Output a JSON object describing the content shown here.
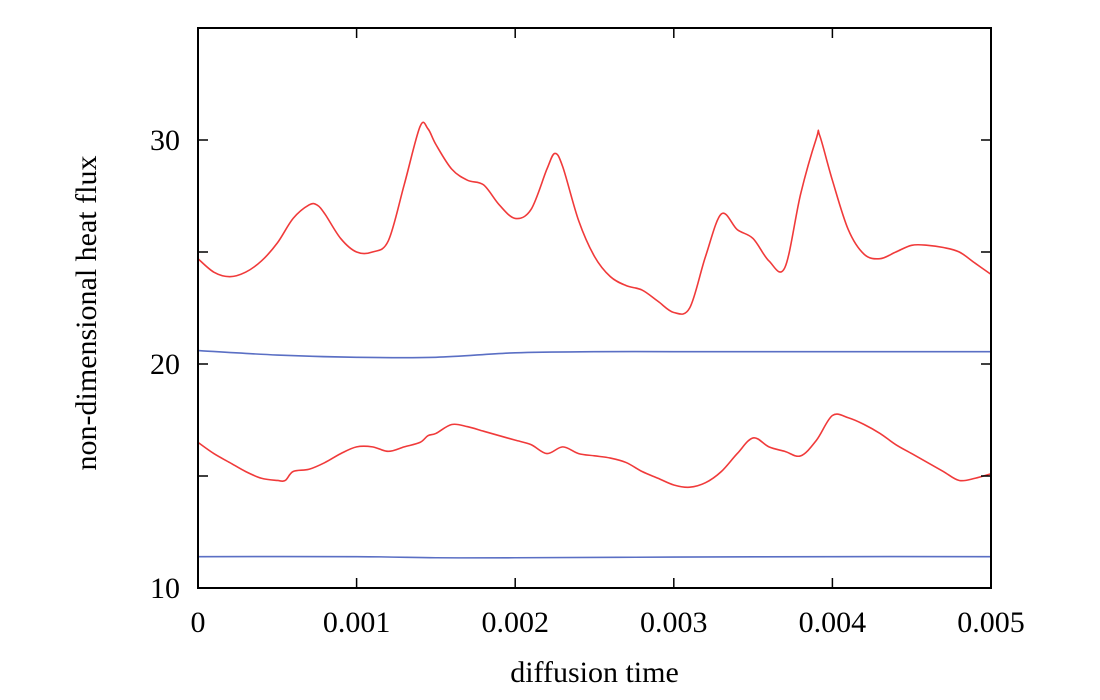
{
  "chart_data": {
    "type": "line",
    "title": "",
    "xlabel": "diffusion time",
    "ylabel": "non-dimensional heat flux",
    "xlim": [
      0,
      0.005
    ],
    "ylim": [
      10,
      35
    ],
    "grid": false,
    "legend": "none",
    "x_ticks": [
      0,
      0.001,
      0.002,
      0.003,
      0.004,
      0.005
    ],
    "x_tick_labels": [
      "0",
      "0.001",
      "0.002",
      "0.003",
      "0.004",
      "0.005"
    ],
    "y_ticks": [
      10,
      15,
      20,
      25,
      30,
      35
    ],
    "y_tick_labels": [
      "10",
      "",
      "20",
      "",
      "30",
      ""
    ],
    "series": [
      {
        "color": "#f03a3a",
        "x": [
          0,
          0.0001,
          0.0002,
          0.0003,
          0.0004,
          0.0005,
          0.0006,
          0.0007,
          0.00075,
          0.0008,
          0.0009,
          0.001,
          0.0011,
          0.0012,
          0.0013,
          0.0014,
          0.00145,
          0.0015,
          0.0016,
          0.0017,
          0.0018,
          0.0019,
          0.002,
          0.0021,
          0.0022,
          0.00225,
          0.0023,
          0.0024,
          0.0025,
          0.0026,
          0.0027,
          0.0028,
          0.0029,
          0.003,
          0.0031,
          0.0032,
          0.0033,
          0.0034,
          0.0035,
          0.0036,
          0.0037,
          0.0038,
          0.0039,
          0.00392,
          0.004,
          0.0041,
          0.0042,
          0.0043,
          0.0044,
          0.0045,
          0.0046,
          0.0047,
          0.0048,
          0.0049,
          0.005
        ],
        "y": [
          24.7,
          24.1,
          23.9,
          24.1,
          24.6,
          25.4,
          26.5,
          27.1,
          27.1,
          26.7,
          25.6,
          25.0,
          25.0,
          25.5,
          28.0,
          30.6,
          30.5,
          29.8,
          28.7,
          28.2,
          28.0,
          27.1,
          26.5,
          26.9,
          28.7,
          29.4,
          28.8,
          26.4,
          24.8,
          23.9,
          23.5,
          23.3,
          22.8,
          22.3,
          22.5,
          24.8,
          26.7,
          26.0,
          25.6,
          24.6,
          24.3,
          27.6,
          30.1,
          30.2,
          28.2,
          26.0,
          24.9,
          24.7,
          25.0,
          25.3,
          25.3,
          25.2,
          25.0,
          24.5,
          24.0
        ]
      },
      {
        "color": "#5a6fc4",
        "x": [
          0,
          0.0005,
          0.001,
          0.0015,
          0.002,
          0.0025,
          0.003,
          0.0035,
          0.004,
          0.0045,
          0.005
        ],
        "y": [
          20.6,
          20.4,
          20.3,
          20.3,
          20.5,
          20.55,
          20.55,
          20.55,
          20.55,
          20.55,
          20.55
        ]
      },
      {
        "color": "#f03a3a",
        "x": [
          0,
          0.0001,
          0.0002,
          0.0003,
          0.0004,
          0.0005,
          0.00055,
          0.0006,
          0.0007,
          0.0008,
          0.0009,
          0.001,
          0.0011,
          0.0012,
          0.0013,
          0.0014,
          0.00145,
          0.0015,
          0.0016,
          0.0017,
          0.0018,
          0.0019,
          0.002,
          0.0021,
          0.0022,
          0.0023,
          0.0024,
          0.0025,
          0.0026,
          0.0027,
          0.0028,
          0.0029,
          0.003,
          0.0031,
          0.0032,
          0.0033,
          0.0034,
          0.0035,
          0.0036,
          0.0037,
          0.0038,
          0.0039,
          0.004,
          0.0041,
          0.0042,
          0.0043,
          0.0044,
          0.0045,
          0.0046,
          0.0047,
          0.0048,
          0.0049,
          0.005
        ],
        "y": [
          16.5,
          16.0,
          15.6,
          15.2,
          14.9,
          14.8,
          14.8,
          15.2,
          15.3,
          15.6,
          16.0,
          16.3,
          16.3,
          16.1,
          16.3,
          16.5,
          16.8,
          16.9,
          17.3,
          17.2,
          17.0,
          16.8,
          16.6,
          16.4,
          16.0,
          16.3,
          16.0,
          15.9,
          15.8,
          15.6,
          15.2,
          14.9,
          14.6,
          14.5,
          14.7,
          15.2,
          16.0,
          16.7,
          16.3,
          16.1,
          15.9,
          16.6,
          17.7,
          17.6,
          17.3,
          16.9,
          16.4,
          16.0,
          15.6,
          15.2,
          14.8,
          14.9,
          15.1
        ]
      },
      {
        "color": "#5a6fc4",
        "x": [
          0,
          0.001,
          0.0015,
          0.002,
          0.003,
          0.004,
          0.005
        ],
        "y": [
          11.4,
          11.4,
          11.35,
          11.35,
          11.38,
          11.4,
          11.4
        ]
      }
    ]
  }
}
